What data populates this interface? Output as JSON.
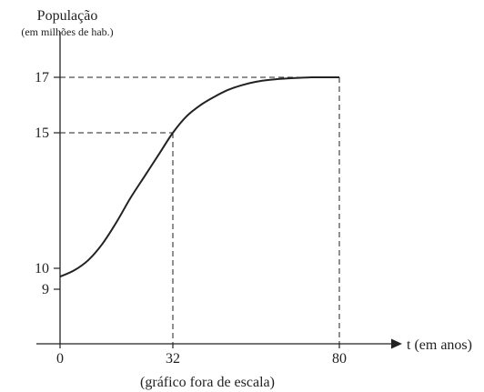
{
  "chart_data": {
    "type": "line",
    "title": "",
    "ylabel": "População",
    "ylabel_unit": "(em milhões de hab.)",
    "xlabel": "t (em anos)",
    "note": "(gráfico fora de escala)",
    "x_ticks": [
      "0",
      "32",
      "80"
    ],
    "y_ticks": [
      "9",
      "10",
      "15",
      "17"
    ],
    "xlim": [
      0,
      80
    ],
    "ylim": [
      9,
      17
    ],
    "grid": false,
    "legend": "none",
    "scale": "not to scale",
    "line_color": "#222222",
    "series": [
      {
        "x": [
          0,
          4,
          8,
          12,
          16,
          20,
          24,
          28,
          32,
          36,
          40,
          44,
          48,
          52,
          56,
          60,
          64,
          68,
          72,
          76,
          80
        ],
        "values": [
          9.6,
          9.9,
          10.3,
          10.9,
          11.7,
          12.6,
          13.4,
          14.2,
          15.0,
          15.6,
          16.0,
          16.3,
          16.55,
          16.72,
          16.84,
          16.91,
          16.95,
          16.98,
          17.0,
          17.0,
          17.0
        ]
      }
    ],
    "reference_points": [
      {
        "x": 32,
        "y": 15
      },
      {
        "x": 80,
        "y": 17
      }
    ]
  }
}
